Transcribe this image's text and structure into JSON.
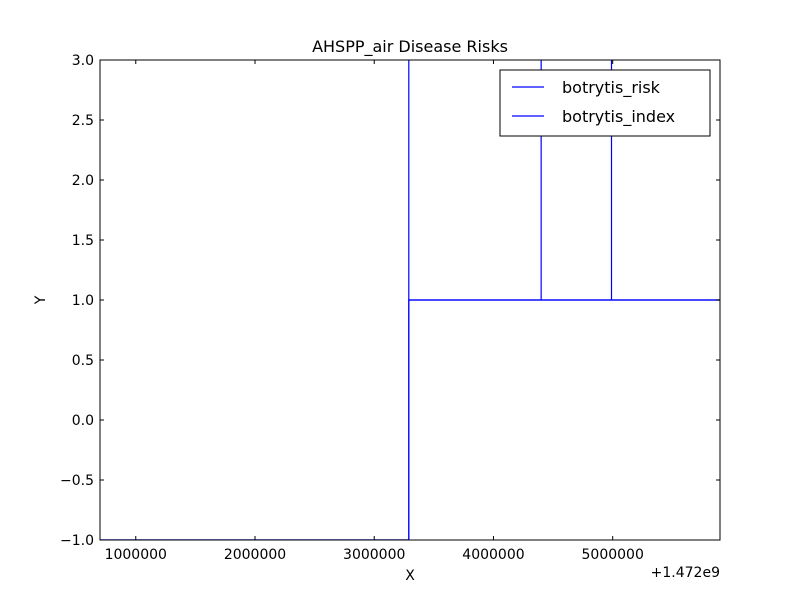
{
  "chart_data": {
    "type": "line",
    "title": "AHSPP_air Disease Risks",
    "xlabel": "X",
    "ylabel": "Y",
    "x_offset_label": "+1.472e9",
    "xlim": [
      700000,
      5900000
    ],
    "ylim": [
      -1.0,
      3.0
    ],
    "xticks": [
      1000000,
      2000000,
      3000000,
      4000000,
      5000000
    ],
    "xtick_labels": [
      "1000000",
      "2000000",
      "3000000",
      "4000000",
      "5000000"
    ],
    "yticks": [
      -1.0,
      -0.5,
      0.0,
      0.5,
      1.0,
      1.5,
      2.0,
      2.5,
      3.0
    ],
    "ytick_labels": [
      "−1.0",
      "−0.5",
      "0.0",
      "0.5",
      "1.0",
      "1.5",
      "2.0",
      "2.5",
      "3.0"
    ],
    "grid": false,
    "legend_position": "top-right",
    "series": [
      {
        "name": "botrytis_risk",
        "color": "#0000ff",
        "points": [
          [
            700000,
            -1
          ],
          [
            3290000,
            -1
          ],
          [
            3290000,
            1
          ],
          [
            5900000,
            1
          ]
        ]
      },
      {
        "name": "botrytis_index",
        "color": "#0000ff",
        "points": [
          [
            700000,
            -1
          ],
          [
            3290000,
            -1
          ],
          [
            3290000,
            3.2
          ],
          [
            3290000,
            1
          ],
          [
            4400000,
            1
          ],
          [
            4400000,
            3.2
          ],
          [
            4400000,
            1
          ],
          [
            4990000,
            1
          ],
          [
            4990000,
            3.2
          ],
          [
            4990000,
            1
          ],
          [
            5900000,
            1
          ]
        ]
      }
    ]
  }
}
